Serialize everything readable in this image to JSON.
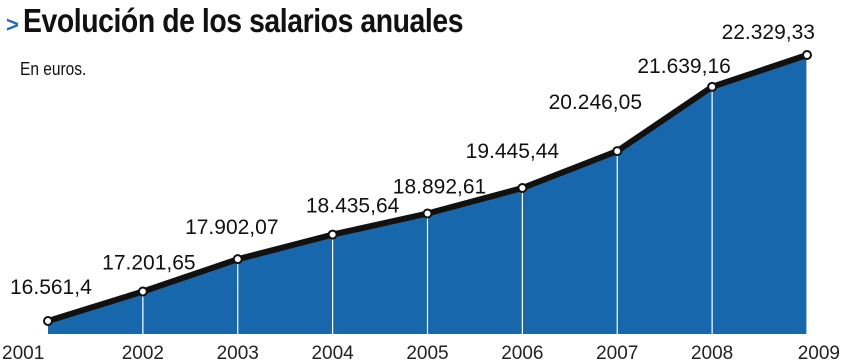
{
  "header": {
    "marker": ">",
    "title": "Evolución de los salarios anuales",
    "subtitle": "En euros."
  },
  "colors": {
    "area_fill": "#1767ad",
    "line": "#111111",
    "point_fill": "#ffffff",
    "title_marker": "#1a6fb6",
    "dropline": "#ffffff"
  },
  "chart_data": {
    "type": "area",
    "title": "Evolución de los salarios anuales",
    "subtitle": "En euros.",
    "xlabel": "",
    "ylabel": "",
    "grid": false,
    "legend": "none",
    "x": [
      "2001",
      "2002",
      "2003",
      "2004",
      "2005",
      "2006",
      "2007",
      "2008",
      "2009"
    ],
    "values": [
      16561.4,
      17201.65,
      17902.07,
      18435.64,
      18892.61,
      19445.44,
      20246.05,
      21639.16,
      22329.33
    ],
    "value_labels": [
      "16.561,4",
      "17.201,65",
      "17.902,07",
      "18.435,64",
      "18.892,61",
      "19.445,44",
      "20.246,05",
      "21.639,16",
      "22.329,33"
    ],
    "ylim": [
      16561.4,
      22329.33
    ]
  }
}
